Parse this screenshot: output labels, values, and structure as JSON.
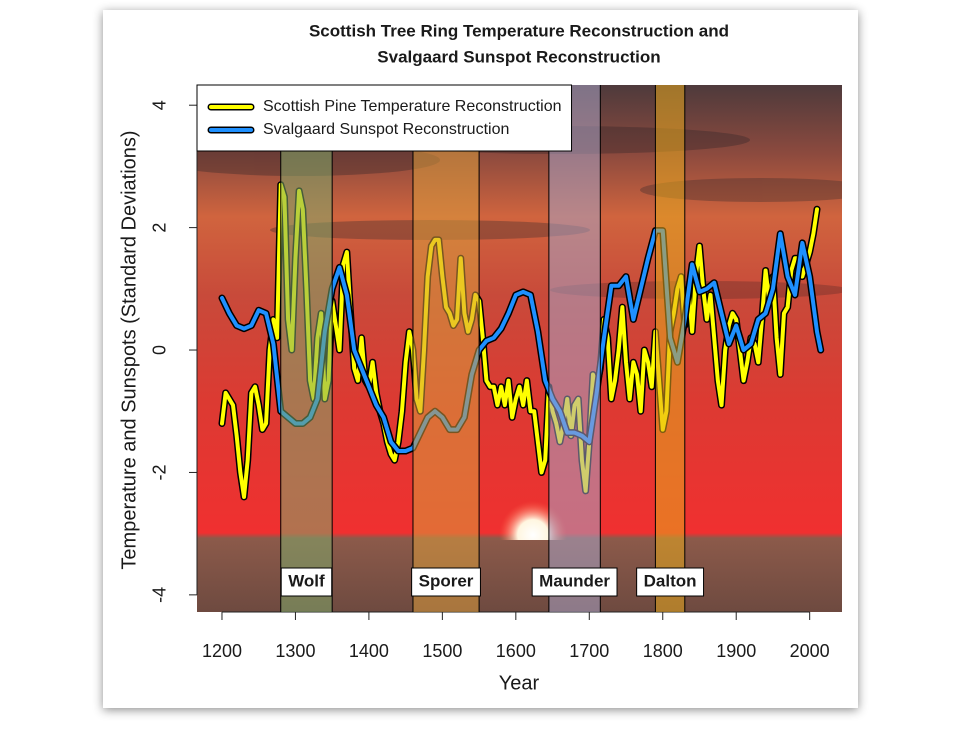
{
  "chart_data": {
    "type": "line",
    "title": [
      "Scottish Tree Ring Temperature Reconstruction and",
      "Svalgaard Sunspot Reconstruction"
    ],
    "x_label": "Year",
    "y_label": "Temperature and Sunspots (Standard Deviations)",
    "xlim": [
      1166,
      2044
    ],
    "ylim": [
      -4.28,
      4.33
    ],
    "xticks": [
      1200,
      1300,
      1400,
      1500,
      1600,
      1700,
      1800,
      1900,
      2000
    ],
    "yticks": [
      -4,
      -2,
      0,
      2,
      4
    ],
    "legend": "top-left",
    "series": [
      {
        "name": "Scottish Pine Temperature Reconstruction",
        "color": "#ffff00",
        "x": [
          1200,
          1205,
          1210,
          1215,
          1220,
          1225,
          1230,
          1235,
          1240,
          1245,
          1250,
          1255,
          1260,
          1265,
          1270,
          1275,
          1280,
          1285,
          1290,
          1295,
          1300,
          1305,
          1310,
          1315,
          1320,
          1325,
          1330,
          1335,
          1340,
          1345,
          1350,
          1355,
          1360,
          1365,
          1370,
          1375,
          1380,
          1385,
          1390,
          1395,
          1400,
          1405,
          1410,
          1415,
          1420,
          1425,
          1430,
          1435,
          1440,
          1445,
          1450,
          1455,
          1460,
          1465,
          1470,
          1475,
          1480,
          1485,
          1490,
          1495,
          1500,
          1505,
          1510,
          1515,
          1520,
          1525,
          1530,
          1535,
          1540,
          1545,
          1550,
          1555,
          1560,
          1565,
          1570,
          1575,
          1580,
          1585,
          1590,
          1595,
          1600,
          1605,
          1610,
          1615,
          1620,
          1625,
          1630,
          1635,
          1640,
          1645,
          1650,
          1655,
          1660,
          1665,
          1670,
          1675,
          1680,
          1685,
          1690,
          1695,
          1700,
          1705,
          1710,
          1715,
          1720,
          1725,
          1730,
          1735,
          1740,
          1745,
          1750,
          1755,
          1760,
          1765,
          1770,
          1775,
          1780,
          1785,
          1790,
          1795,
          1800,
          1805,
          1810,
          1815,
          1820,
          1825,
          1830,
          1835,
          1840,
          1845,
          1850,
          1855,
          1860,
          1865,
          1870,
          1875,
          1880,
          1885,
          1890,
          1895,
          1900,
          1905,
          1910,
          1915,
          1920,
          1925,
          1930,
          1935,
          1940,
          1945,
          1950,
          1955,
          1960,
          1965,
          1970,
          1975,
          1980,
          1985,
          1990,
          1995,
          2000,
          2005,
          2010
        ],
        "values": [
          -1.2,
          -0.7,
          -0.8,
          -0.9,
          -1.4,
          -2.0,
          -2.4,
          -1.8,
          -0.7,
          -0.6,
          -0.9,
          -1.3,
          -1.2,
          0.0,
          0.5,
          0.2,
          2.7,
          2.5,
          0.5,
          0.0,
          1.5,
          2.6,
          2.3,
          1.0,
          -0.5,
          -0.8,
          0.2,
          0.6,
          -0.8,
          -0.5,
          0.8,
          0.4,
          0.0,
          1.4,
          1.6,
          0.6,
          -0.3,
          -0.5,
          0.2,
          -0.5,
          -0.6,
          -0.2,
          -0.7,
          -1.0,
          -1.2,
          -1.5,
          -1.7,
          -1.8,
          -1.5,
          -1.0,
          -0.2,
          0.3,
          0.0,
          -0.8,
          -1.0,
          0.0,
          1.2,
          1.7,
          1.8,
          1.8,
          1.2,
          0.7,
          0.6,
          0.4,
          0.5,
          1.5,
          0.6,
          0.3,
          0.5,
          0.9,
          0.8,
          0.2,
          -0.5,
          -0.6,
          -0.6,
          -0.9,
          -0.6,
          -0.9,
          -0.5,
          -1.1,
          -0.8,
          -0.6,
          -0.9,
          -0.5,
          -1.0,
          -1.0,
          -1.5,
          -2.0,
          -1.8,
          -0.6,
          -1.0,
          -1.2,
          -1.5,
          -1.2,
          -0.8,
          -1.4,
          -0.9,
          -0.8,
          -1.8,
          -2.3,
          -1.5,
          -0.4,
          -0.6,
          -0.3,
          0.5,
          0.2,
          -0.8,
          -0.5,
          0.0,
          0.7,
          -0.2,
          -0.8,
          -0.2,
          -0.4,
          -1.0,
          0.0,
          -0.2,
          -0.6,
          0.3,
          -0.5,
          -1.3,
          -1.0,
          0.3,
          0.6,
          1.0,
          1.2,
          0.4,
          1.0,
          0.3,
          1.2,
          1.7,
          1.0,
          0.5,
          0.9,
          0.2,
          -0.5,
          -0.9,
          0.0,
          0.4,
          0.6,
          0.5,
          0.0,
          -0.5,
          -0.2,
          0.2,
          0.1,
          -0.2,
          0.5,
          1.3,
          0.8,
          1.2,
          0.2,
          -0.4,
          0.6,
          0.7,
          1.3,
          1.5,
          1.5,
          1.2,
          1.4,
          1.6,
          1.9,
          2.3
        ]
      },
      {
        "name": "Svalgaard Sunspot Reconstruction",
        "color": "#1e90ff",
        "x": [
          1200,
          1210,
          1220,
          1230,
          1240,
          1250,
          1260,
          1270,
          1280,
          1290,
          1300,
          1310,
          1320,
          1330,
          1340,
          1350,
          1360,
          1370,
          1380,
          1390,
          1400,
          1410,
          1420,
          1430,
          1440,
          1450,
          1460,
          1470,
          1480,
          1490,
          1500,
          1510,
          1520,
          1530,
          1540,
          1550,
          1560,
          1570,
          1580,
          1590,
          1600,
          1610,
          1620,
          1630,
          1640,
          1650,
          1660,
          1670,
          1680,
          1690,
          1700,
          1710,
          1720,
          1730,
          1740,
          1750,
          1760,
          1770,
          1780,
          1790,
          1800,
          1810,
          1820,
          1830,
          1840,
          1850,
          1860,
          1870,
          1880,
          1890,
          1900,
          1910,
          1920,
          1930,
          1940,
          1950,
          1960,
          1970,
          1980,
          1990,
          2000,
          2010,
          2015
        ],
        "values": [
          0.85,
          0.6,
          0.4,
          0.35,
          0.4,
          0.65,
          0.6,
          0.1,
          -1.0,
          -1.1,
          -1.2,
          -1.2,
          -1.1,
          -0.8,
          0.3,
          1.0,
          1.35,
          0.9,
          0.0,
          -0.3,
          -0.6,
          -0.9,
          -1.1,
          -1.5,
          -1.65,
          -1.65,
          -1.6,
          -1.35,
          -1.1,
          -1.0,
          -1.1,
          -1.3,
          -1.3,
          -1.1,
          -0.4,
          0.0,
          0.15,
          0.2,
          0.35,
          0.6,
          0.9,
          0.95,
          0.9,
          0.3,
          -0.5,
          -0.8,
          -1.0,
          -1.35,
          -1.35,
          -1.4,
          -1.5,
          -0.7,
          0.2,
          1.05,
          1.05,
          1.2,
          0.5,
          1.0,
          1.5,
          1.95,
          1.95,
          0.2,
          -0.2,
          0.5,
          1.4,
          0.95,
          1.0,
          1.1,
          0.6,
          0.1,
          0.4,
          0.0,
          0.1,
          0.5,
          0.6,
          1.0,
          1.9,
          1.2,
          0.9,
          1.75,
          1.2,
          0.3,
          0.0
        ]
      }
    ],
    "bands": [
      {
        "name": "Wolf",
        "start": 1280,
        "end": 1350,
        "color": "#7fa86a"
      },
      {
        "name": "Sporer",
        "start": 1460,
        "end": 1550,
        "color": "#d89a3c"
      },
      {
        "name": "Maunder",
        "start": 1645,
        "end": 1715,
        "color": "#a8a2c4"
      },
      {
        "name": "Dalton",
        "start": 1790,
        "end": 1830,
        "color": "#e6a81e"
      }
    ]
  }
}
